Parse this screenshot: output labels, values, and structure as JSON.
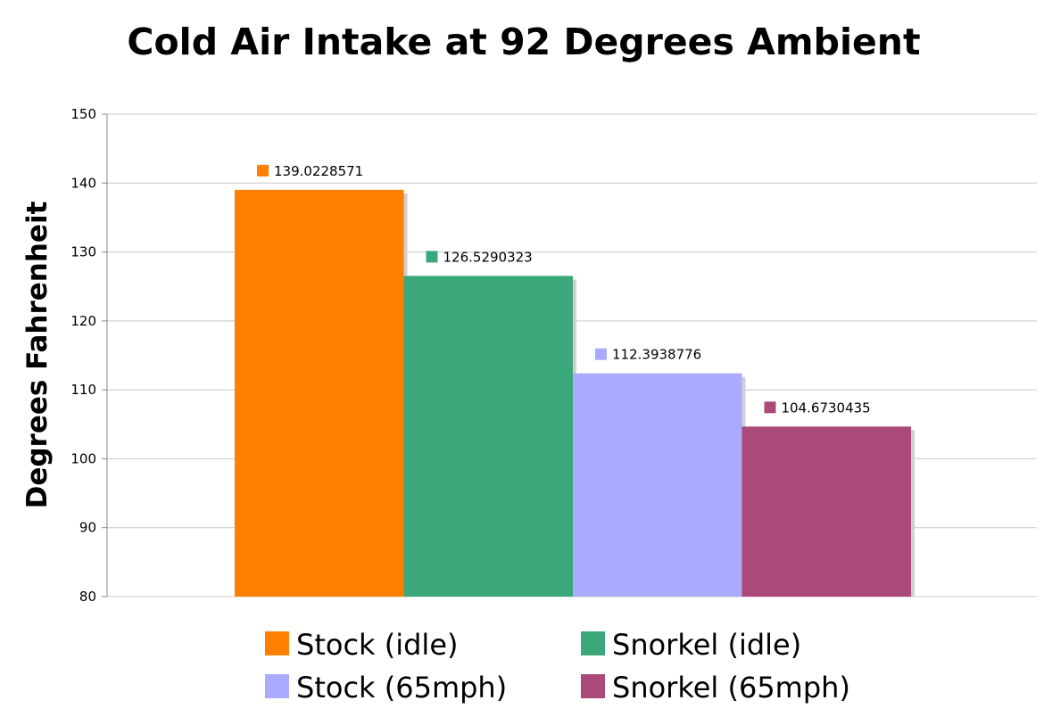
{
  "chart_data": {
    "type": "bar",
    "title": "Cold Air Intake at 92 Degrees Ambient",
    "ylabel": "Degrees Fahrenheit",
    "xlabel": "",
    "ylim": [
      80,
      150
    ],
    "yticks": [
      80,
      90,
      100,
      110,
      120,
      130,
      140,
      150
    ],
    "grid": true,
    "legend_position": "bottom",
    "series": [
      {
        "name": "Stock (idle)",
        "value": 139.0228571,
        "label": "139.0228571",
        "color": "#ff7f00"
      },
      {
        "name": "Snorkel (idle)",
        "value": 126.5290323,
        "label": "126.5290323",
        "color": "#3aa87a"
      },
      {
        "name": "Stock (65mph)",
        "value": 112.3938776,
        "label": "112.3938776",
        "color": "#aaaaff"
      },
      {
        "name": "Snorkel (65mph)",
        "value": 104.6730435,
        "label": "104.6730435",
        "color": "#ab4979"
      }
    ]
  }
}
